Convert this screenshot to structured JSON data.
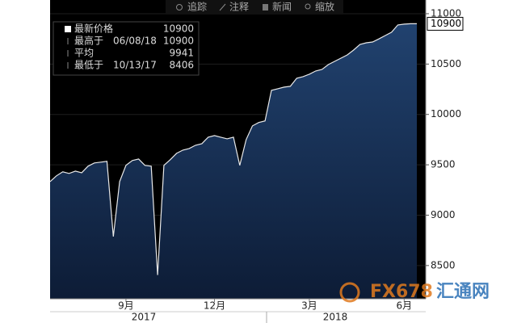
{
  "toolbar": [
    "追踪",
    "注释",
    "新闻",
    "缩放"
  ],
  "chart_data": {
    "type": "area",
    "values": [
      9333,
      9390,
      9430,
      9414,
      9437,
      9421,
      9486,
      9518,
      9526,
      9534,
      8788,
      9333,
      9494,
      9542,
      9558,
      9494,
      9486,
      8406,
      9494,
      9550,
      9614,
      9646,
      9662,
      9694,
      9710,
      9774,
      9790,
      9774,
      9758,
      9774,
      9494,
      9750,
      9886,
      9920,
      9936,
      10239,
      10255,
      10271,
      10279,
      10359,
      10375,
      10399,
      10431,
      10447,
      10495,
      10527,
      10559,
      10591,
      10639,
      10695,
      10711,
      10719,
      10750,
      10783,
      10816,
      10888,
      10896,
      10900,
      10900
    ],
    "color": "#1c3a66",
    "line_color": "#e8e8e8",
    "ylim": [
      8170,
      11136
    ],
    "yticks": [
      8500,
      9000,
      9500,
      10000,
      10500,
      11000
    ],
    "xticks": [
      {
        "value": 12,
        "label": "9月"
      },
      {
        "value": 26,
        "label": "12月"
      },
      {
        "value": 41,
        "label": "3月"
      },
      {
        "value": 56,
        "label": "6月"
      }
    ],
    "years": [
      "2017",
      "2018"
    ],
    "grid": true,
    "last_value_label": "10900",
    "legend": [
      {
        "label": "最新价格",
        "value": 10900
      },
      {
        "label": "最高于",
        "date": "06/08/18",
        "value": 10900
      },
      {
        "label": "平均",
        "value": 9941
      },
      {
        "label": "最低于",
        "date": "10/13/17",
        "value": 8406
      }
    ]
  },
  "watermark": {
    "brand": "FX678",
    "name": "汇通网"
  }
}
